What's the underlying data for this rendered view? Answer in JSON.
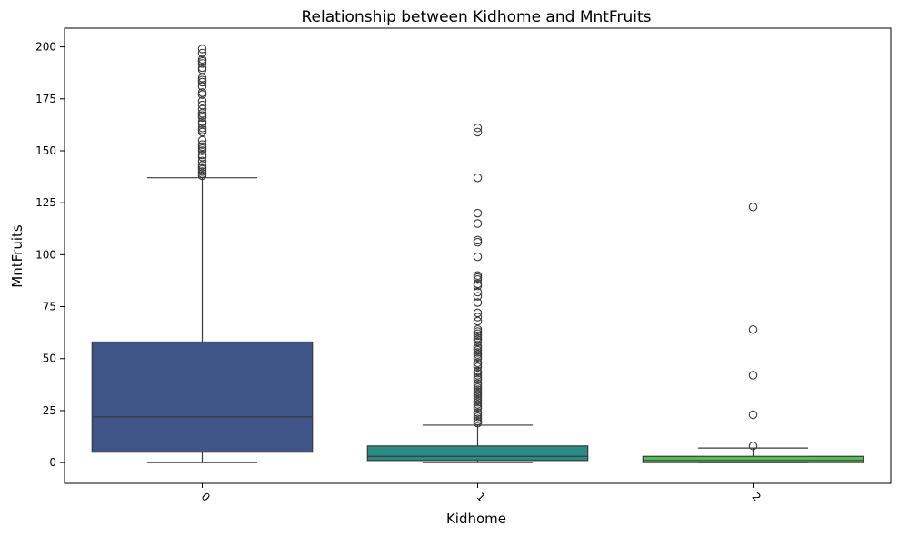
{
  "chart_data": {
    "type": "box",
    "title": "Relationship between Kidhome and MntFruits",
    "xlabel": "Kidhome",
    "ylabel": "MntFruits",
    "categories": [
      "0",
      "1",
      "2"
    ],
    "ylim": [
      -10,
      209
    ],
    "yticks": [
      0,
      25,
      50,
      75,
      100,
      125,
      150,
      175,
      200
    ],
    "grid": false,
    "colors": [
      "#3f5587",
      "#2a8a84",
      "#56bd5c"
    ],
    "boxes": [
      {
        "category": "0",
        "whisker_low": 0,
        "q1": 5,
        "median": 22,
        "q3": 58,
        "whisker_high": 137,
        "outliers": [
          138,
          139,
          140,
          141,
          142,
          143,
          145,
          147,
          148,
          150,
          151,
          152,
          153,
          155,
          159,
          160,
          161,
          163,
          164,
          166,
          167,
          168,
          170,
          172,
          174,
          177,
          178,
          181,
          183,
          184,
          185,
          189,
          190,
          192,
          193,
          194,
          197,
          199
        ]
      },
      {
        "category": "1",
        "whisker_low": 0,
        "q1": 1,
        "median": 3,
        "q3": 8,
        "whisker_high": 18,
        "outliers": [
          19,
          20,
          21,
          22,
          23,
          24,
          26,
          27,
          28,
          29,
          30,
          31,
          32,
          33,
          34,
          35,
          36,
          37,
          38,
          40,
          41,
          42,
          43,
          44,
          46,
          47,
          48,
          50,
          51,
          52,
          53,
          54,
          55,
          56,
          58,
          59,
          60,
          61,
          62,
          63,
          64,
          68,
          70,
          72,
          77,
          80,
          82,
          85,
          86,
          88,
          89,
          90,
          99,
          106,
          107,
          115,
          120,
          137,
          159,
          161
        ]
      },
      {
        "category": "2",
        "whisker_low": 0,
        "q1": 0,
        "median": 1,
        "q3": 3,
        "whisker_high": 7,
        "outliers": [
          8,
          23,
          42,
          64,
          123
        ]
      }
    ]
  }
}
